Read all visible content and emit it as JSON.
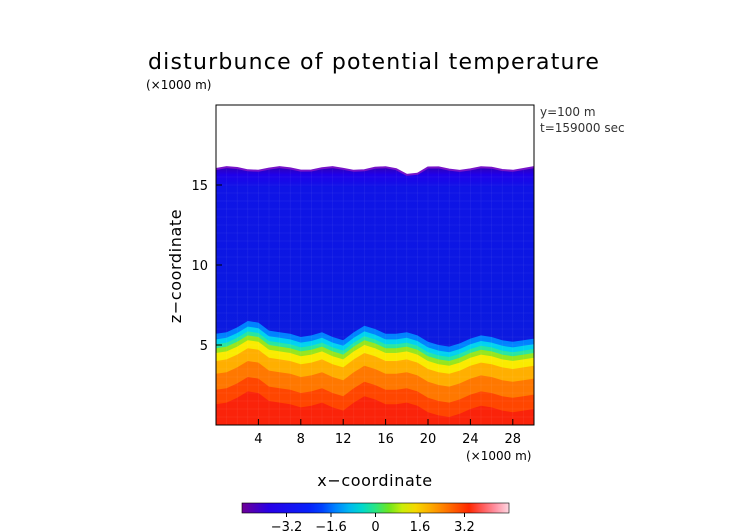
{
  "chart_data": {
    "type": "heatmap",
    "title": "disturbunce of potential temperature",
    "scale_note": "(×1000 m)",
    "info_lines": [
      "y=100  m",
      "t=159000 sec"
    ],
    "xlabel": "x−coordinate",
    "ylabel": "z−coordinate",
    "x_unit": "(×1000 m)",
    "xlim": [
      0,
      30
    ],
    "ylim": [
      0,
      20
    ],
    "x_ticks": [
      4,
      8,
      12,
      16,
      20,
      24,
      28
    ],
    "y_ticks": [
      5,
      10,
      15
    ],
    "colorbar": {
      "range": [
        -4.8,
        4.8
      ],
      "ticks": [
        {
          "value": -3.2,
          "label": "−3.2"
        },
        {
          "value": -1.6,
          "label": "−1.6"
        },
        {
          "value": 0,
          "label": "0"
        },
        {
          "value": 1.6,
          "label": "1.6"
        },
        {
          "value": 3.2,
          "label": "3.2"
        }
      ]
    },
    "field": {
      "data_top_z": 16.0,
      "upper_value": -3.2,
      "lower_value": 3.2,
      "interface_z": [
        {
          "x": 0,
          "z": 4.8
        },
        {
          "x": 1,
          "z": 4.9
        },
        {
          "x": 2,
          "z": 5.2
        },
        {
          "x": 3,
          "z": 5.6
        },
        {
          "x": 4,
          "z": 5.5
        },
        {
          "x": 5,
          "z": 5.0
        },
        {
          "x": 6,
          "z": 4.9
        },
        {
          "x": 7,
          "z": 4.8
        },
        {
          "x": 8,
          "z": 4.6
        },
        {
          "x": 9,
          "z": 4.7
        },
        {
          "x": 10,
          "z": 4.9
        },
        {
          "x": 11,
          "z": 4.6
        },
        {
          "x": 12,
          "z": 4.4
        },
        {
          "x": 13,
          "z": 4.9
        },
        {
          "x": 14,
          "z": 5.3
        },
        {
          "x": 15,
          "z": 5.1
        },
        {
          "x": 16,
          "z": 4.8
        },
        {
          "x": 17,
          "z": 4.8
        },
        {
          "x": 18,
          "z": 4.9
        },
        {
          "x": 19,
          "z": 4.7
        },
        {
          "x": 20,
          "z": 4.3
        },
        {
          "x": 21,
          "z": 4.1
        },
        {
          "x": 22,
          "z": 4.0
        },
        {
          "x": 23,
          "z": 4.2
        },
        {
          "x": 24,
          "z": 4.5
        },
        {
          "x": 25,
          "z": 4.7
        },
        {
          "x": 26,
          "z": 4.6
        },
        {
          "x": 27,
          "z": 4.4
        },
        {
          "x": 28,
          "z": 4.3
        },
        {
          "x": 29,
          "z": 4.4
        },
        {
          "x": 30,
          "z": 4.5
        }
      ]
    }
  }
}
